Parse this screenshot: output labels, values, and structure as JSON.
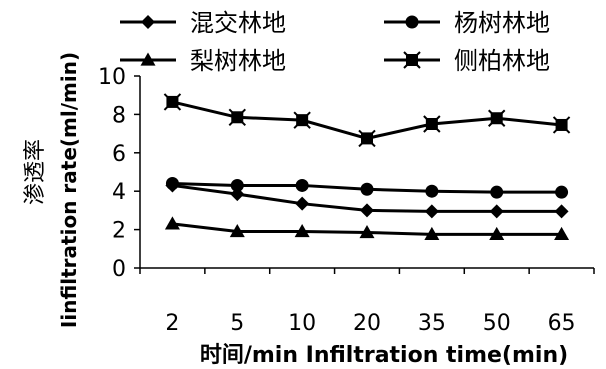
{
  "chart_data": {
    "type": "line",
    "categories": [
      "2",
      "5",
      "10",
      "20",
      "35",
      "50",
      "65"
    ],
    "series": [
      {
        "name": "混交林地",
        "marker": "diamond",
        "values": [
          4.3,
          3.85,
          3.35,
          3.0,
          2.95,
          2.95,
          2.95
        ]
      },
      {
        "name": "杨树林地",
        "marker": "circle",
        "values": [
          4.4,
          4.3,
          4.3,
          4.1,
          4.0,
          3.95,
          3.95
        ]
      },
      {
        "name": "梨树林地",
        "marker": "triangle",
        "values": [
          2.3,
          1.9,
          1.9,
          1.85,
          1.75,
          1.75,
          1.75
        ]
      },
      {
        "name": "侧柏林地",
        "marker": "star-square",
        "values": [
          8.65,
          7.85,
          7.7,
          6.75,
          7.5,
          7.8,
          7.45
        ]
      }
    ],
    "ylim": [
      0,
      10
    ],
    "yticks": [
      0,
      2,
      4,
      6,
      8,
      10
    ],
    "ylabel_cn": "渗透率",
    "ylabel": "Iinfiltration rate(ml/min)",
    "xlabel": "时间/min Infiltration time(min)",
    "legend_position": "top",
    "grid": false,
    "line_color": "#000000"
  }
}
